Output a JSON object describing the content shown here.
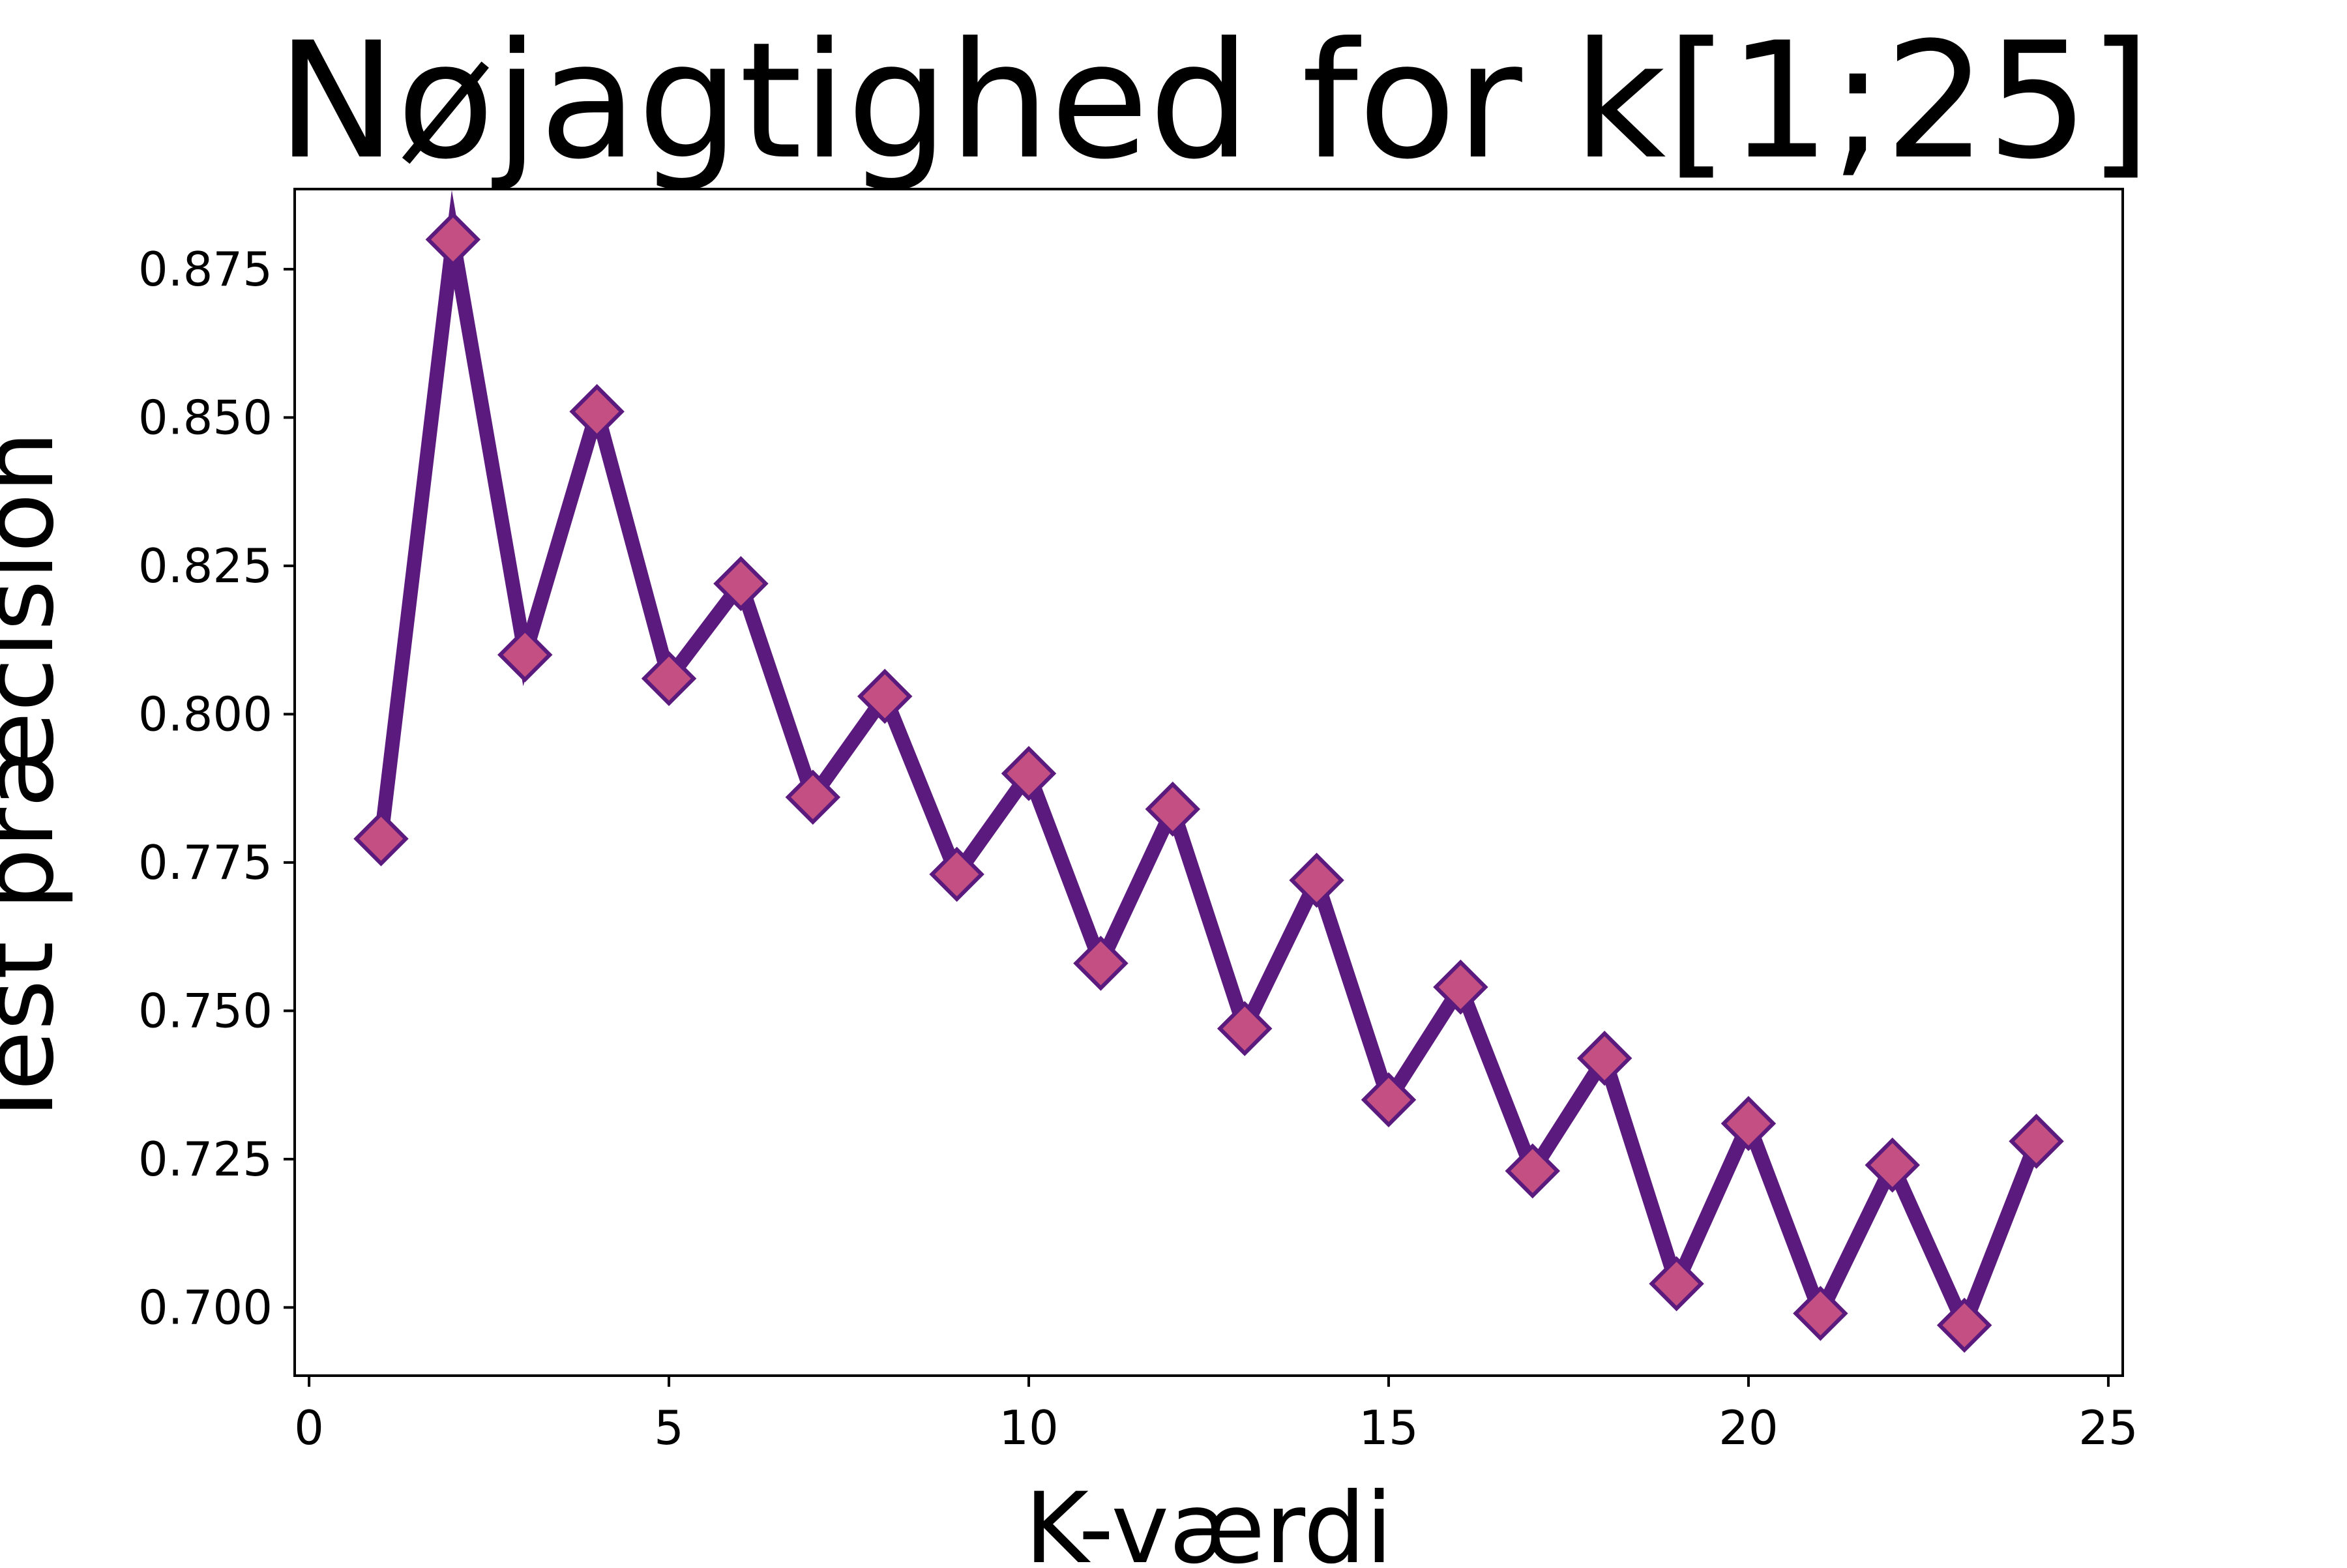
{
  "chart_data": {
    "type": "line",
    "title": "Nøjagtighed for k[1;25]",
    "xlabel": "K-værdi",
    "ylabel": "Test præcision",
    "xlim": [
      -0.2,
      25.2
    ],
    "ylim": [
      0.6885,
      0.8885
    ],
    "xticks": [
      0,
      5,
      10,
      15,
      20,
      25
    ],
    "xtick_labels": [
      "0",
      "5",
      "10",
      "15",
      "20",
      "25"
    ],
    "yticks": [
      0.7,
      0.725,
      0.75,
      0.775,
      0.8,
      0.825,
      0.85,
      0.875
    ],
    "ytick_labels": [
      "0.700",
      "0.725",
      "0.750",
      "0.775",
      "0.800",
      "0.825",
      "0.850",
      "0.875"
    ],
    "grid": false,
    "series": [
      {
        "x": [
          1,
          2,
          3,
          4,
          5,
          6,
          7,
          8,
          9,
          10,
          11,
          12,
          13,
          14,
          15,
          16,
          17,
          18,
          19,
          20,
          21,
          22,
          23,
          24
        ],
        "y": [
          0.779,
          0.88,
          0.81,
          0.851,
          0.806,
          0.822,
          0.786,
          0.803,
          0.773,
          0.79,
          0.758,
          0.784,
          0.747,
          0.772,
          0.735,
          0.754,
          0.723,
          0.742,
          0.704,
          0.731,
          0.699,
          0.724,
          0.697,
          0.728
        ],
        "line_color": "#5b1a7d",
        "marker": "diamond",
        "marker_fill": "#c44f82",
        "marker_edge": "#5b1a7d"
      }
    ]
  }
}
